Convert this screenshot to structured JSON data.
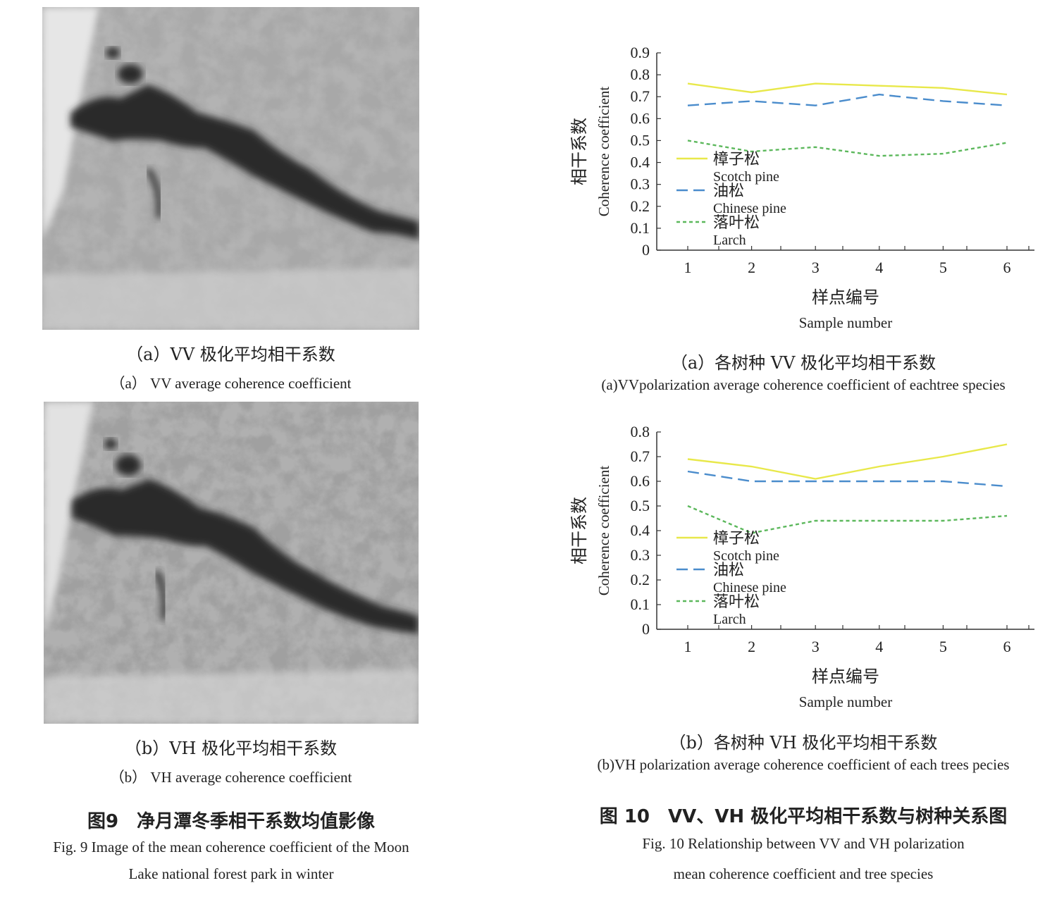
{
  "fig9": {
    "caption_cn": "图9　净月潭冬季相干系数均值影像",
    "caption_en_line1": "Fig. 9 Image of the mean coherence coefficient of the Moon",
    "caption_en_line2": "Lake national forest park in winter",
    "panel_a_cn": "（a）VV 极化平均相干系数",
    "panel_a_en": "（a） VV average coherence coefficient",
    "panel_b_cn": "（b）VH 极化平均相干系数",
    "panel_b_en": "（b） VH average coherence coefficient"
  },
  "fig10": {
    "caption_cn": "图 10　VV、VH 极化平均相干系数与树种关系图",
    "caption_en_line1": "Fig. 10 Relationship between VV and VH polarization",
    "caption_en_line2": "mean coherence coefficient and tree species",
    "panel_a_cn": "（a）各树种 VV 极化平均相干系数",
    "panel_a_en": "(a)VVpolarization average coherence coefficient of eachtree species",
    "panel_b_cn": "（b）各树种 VH 极化平均相干系数",
    "panel_b_en": "(b)VH polarization average coherence coefficient of each trees pecies"
  },
  "legend": [
    {
      "cn": "樟子松",
      "en": "Scotch pine",
      "color": "#e8e84a",
      "dash": "solid"
    },
    {
      "cn": "油松",
      "en": "Chinese pine",
      "color": "#4a8ccc",
      "dash": "dashed"
    },
    {
      "cn": "落叶松",
      "en": "Larch",
      "color": "#5cb85c",
      "dash": "dotted"
    }
  ],
  "chart_data": [
    {
      "type": "line",
      "xlabel_cn": "样点编号",
      "xlabel_en": "Sample number",
      "ylabel_cn": "相干系数",
      "ylabel_en": "Coherence coefficient",
      "x": [
        1,
        2,
        3,
        4,
        5,
        6
      ],
      "ylim": [
        0,
        0.9
      ],
      "yticks": [
        "0",
        "0.1",
        "0.2",
        "0.3",
        "0.4",
        "0.5",
        "0.6",
        "0.7",
        "0.8",
        "0.9"
      ],
      "series": [
        {
          "name": "樟子松 Scotch pine",
          "values": [
            0.76,
            0.72,
            0.76,
            0.75,
            0.74,
            0.71
          ]
        },
        {
          "name": "油松 Chinese pine",
          "values": [
            0.66,
            0.68,
            0.66,
            0.71,
            0.68,
            0.66
          ]
        },
        {
          "name": "落叶松 Larch",
          "values": [
            0.5,
            0.45,
            0.47,
            0.43,
            0.44,
            0.49
          ]
        }
      ]
    },
    {
      "type": "line",
      "xlabel_cn": "样点编号",
      "xlabel_en": "Sample number",
      "ylabel_cn": "相干系数",
      "ylabel_en": "Coherence coefficient",
      "x": [
        1,
        2,
        3,
        4,
        5,
        6
      ],
      "ylim": [
        0,
        0.8
      ],
      "yticks": [
        "0",
        "0.1",
        "0.2",
        "0.3",
        "0.4",
        "0.5",
        "0.6",
        "0.7",
        "0.8"
      ],
      "series": [
        {
          "name": "樟子松 Scotch pine",
          "values": [
            0.69,
            0.66,
            0.61,
            0.66,
            0.7,
            0.75
          ]
        },
        {
          "name": "油松 Chinese pine",
          "values": [
            0.64,
            0.6,
            0.6,
            0.6,
            0.6,
            0.58
          ]
        },
        {
          "name": "落叶松 Larch",
          "values": [
            0.5,
            0.39,
            0.44,
            0.44,
            0.44,
            0.46
          ]
        }
      ]
    }
  ]
}
